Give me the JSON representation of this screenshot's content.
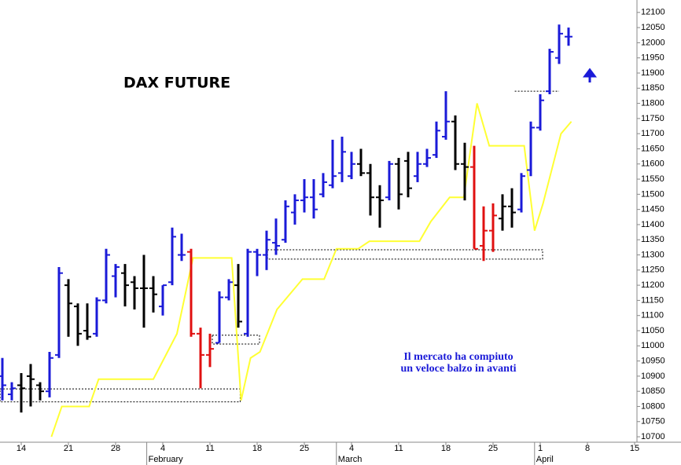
{
  "chart_data": {
    "type": "ohlc",
    "title": "DAX FUTURE",
    "annotations": [
      "Il mercato ha compiuto",
      "un veloce balzo in avanti"
    ],
    "x": [
      -2,
      -1,
      0,
      1,
      2,
      3,
      4,
      5,
      6,
      7,
      8,
      9,
      10,
      11,
      12,
      13,
      14,
      15,
      16,
      17,
      18,
      19,
      20,
      21,
      22,
      23,
      24,
      25,
      26,
      27,
      28,
      29,
      30,
      31,
      32,
      33,
      34,
      35,
      36,
      37,
      38,
      39,
      40,
      41,
      42,
      43,
      44,
      45,
      46,
      47,
      48,
      49,
      50,
      51,
      52,
      53,
      54,
      55,
      56,
      57,
      58
    ],
    "open": [
      10900,
      10840,
      10870,
      10900,
      10870,
      10850,
      10970,
      11200,
      11130,
      11050,
      11040,
      11150,
      11230,
      11240,
      11210,
      11190,
      11190,
      11130,
      11210,
      11300,
      11310,
      11040,
      10970,
      11010,
      11160,
      11200,
      11040,
      11310,
      11300,
      11340,
      11350,
      11440,
      11480,
      11490,
      11500,
      11530,
      11570,
      11560,
      11600,
      11570,
      11490,
      11490,
      11600,
      11610,
      11560,
      11600,
      11630,
      11690,
      11740,
      11600,
      11590,
      11330,
      11380,
      11420,
      11460,
      11450,
      11580,
      11720,
      11840,
      11950,
      12020
    ],
    "high": [
      10960,
      10880,
      10910,
      10940,
      10880,
      10980,
      11260,
      11220,
      11140,
      11140,
      11160,
      11320,
      11270,
      11270,
      11230,
      11300,
      11230,
      11200,
      11390,
      11370,
      11320,
      11060,
      11040,
      11180,
      11220,
      11270,
      11320,
      11320,
      11380,
      11420,
      11480,
      11500,
      11550,
      11550,
      11570,
      11680,
      11690,
      11640,
      11650,
      11600,
      11530,
      11610,
      11620,
      11640,
      11640,
      11650,
      11740,
      11840,
      11760,
      11670,
      11660,
      11460,
      11470,
      11500,
      11520,
      11570,
      11740,
      11830,
      11980,
      12060,
      12050
    ],
    "low": [
      10820,
      10820,
      10780,
      10800,
      10820,
      10830,
      10960,
      11030,
      11000,
      11020,
      11030,
      11140,
      11160,
      11130,
      11120,
      11060,
      11110,
      11100,
      11200,
      11280,
      11030,
      10860,
      10930,
      11010,
      11150,
      11060,
      11030,
      11230,
      11250,
      11300,
      11340,
      11400,
      11440,
      11420,
      11490,
      11520,
      11540,
      11550,
      11560,
      11430,
      11390,
      11480,
      11450,
      11490,
      11540,
      11590,
      11620,
      11680,
      11580,
      11480,
      11320,
      11280,
      11310,
      11380,
      11390,
      11440,
      11560,
      11710,
      11830,
      11930,
      11990
    ],
    "close": [
      10870,
      10860,
      10860,
      10890,
      10850,
      10960,
      11240,
      11140,
      11040,
      11030,
      11150,
      11300,
      11260,
      11200,
      11190,
      11190,
      11170,
      11200,
      11360,
      11300,
      11040,
      10970,
      10990,
      11160,
      11210,
      11080,
      11310,
      11300,
      11350,
      11330,
      11460,
      11480,
      11490,
      11450,
      11540,
      11560,
      11640,
      11600,
      11570,
      11490,
      11480,
      11600,
      11500,
      11520,
      11600,
      11620,
      11710,
      11740,
      11600,
      11590,
      11320,
      11380,
      11430,
      11460,
      11440,
      11560,
      11720,
      11810,
      11970,
      12030,
      12020
    ],
    "bar_colors": [
      "#1a1ad8",
      "#1a1ad8",
      "#000000",
      "#000000",
      "#000000",
      "#1a1ad8",
      "#1a1ad8",
      "#000000",
      "#000000",
      "#000000",
      "#1a1ad8",
      "#1a1ad8",
      "#1a1ad8",
      "#000000",
      "#000000",
      "#000000",
      "#000000",
      "#1a1ad8",
      "#1a1ad8",
      "#1a1ad8",
      "#e01010",
      "#e01010",
      "#e01010",
      "#1a1ad8",
      "#1a1ad8",
      "#000000",
      "#1a1ad8",
      "#1a1ad8",
      "#1a1ad8",
      "#1a1ad8",
      "#1a1ad8",
      "#1a1ad8",
      "#1a1ad8",
      "#1a1ad8",
      "#1a1ad8",
      "#1a1ad8",
      "#1a1ad8",
      "#1a1ad8",
      "#000000",
      "#000000",
      "#000000",
      "#1a1ad8",
      "#000000",
      "#000000",
      "#1a1ad8",
      "#1a1ad8",
      "#1a1ad8",
      "#1a1ad8",
      "#000000",
      "#000000",
      "#e01010",
      "#e01010",
      "#e01010",
      "#000000",
      "#000000",
      "#1a1ad8",
      "#1a1ad8",
      "#1a1ad8",
      "#1a1ad8",
      "#1a1ad8",
      "#1a1ad8"
    ],
    "trend": {
      "color": "#ffff33",
      "x": [
        3.2,
        4.3,
        7.2,
        8.2,
        14,
        16.5,
        18.2,
        22.3,
        23.3,
        24.3,
        25.3,
        27.1,
        29.8,
        32.1,
        33.4,
        35.7,
        36.9,
        42.2,
        43.4,
        45.4,
        46.9,
        48.3,
        49.6,
        53.3,
        54.4,
        55.3,
        57.2,
        58.3
      ],
      "values": [
        10700,
        10800,
        10800,
        10890,
        10890,
        11040,
        11290,
        11290,
        10820,
        10960,
        10980,
        11120,
        11220,
        11220,
        11320,
        11320,
        11345,
        11345,
        11410,
        11490,
        11490,
        11800,
        11660,
        11660,
        11380,
        11470,
        11700,
        11740
      ]
    },
    "zones": [
      {
        "x": [
          -2.25,
          23.2
        ],
        "y": [
          10815,
          10858
        ]
      },
      {
        "x": [
          20.25,
          25.25
        ],
        "y": [
          11006,
          11035
        ]
      },
      {
        "x": [
          26.1,
          55.25
        ],
        "y": [
          11286,
          11317
        ]
      }
    ],
    "levels": [
      {
        "x": [
          52.3,
          57
        ],
        "y": 11840
      }
    ],
    "xlim": [
      -2.25,
      65.25
    ],
    "ylim": [
      10682,
      12141
    ],
    "xticks": [
      {
        "value": 0,
        "label": "14"
      },
      {
        "value": 5,
        "label": "21"
      },
      {
        "value": 10,
        "label": "28"
      },
      {
        "value": 15,
        "label": "4"
      },
      {
        "value": 20,
        "label": "11"
      },
      {
        "value": 25,
        "label": "18"
      },
      {
        "value": 30,
        "label": "25"
      },
      {
        "value": 35,
        "label": "4"
      },
      {
        "value": 40,
        "label": "11"
      },
      {
        "value": 45,
        "label": "18"
      },
      {
        "value": 50,
        "label": "25"
      },
      {
        "value": 55,
        "label": "1"
      },
      {
        "value": 60,
        "label": "8"
      },
      {
        "value": 65,
        "label": "15"
      }
    ],
    "month_ticks": [
      {
        "value": 13.3,
        "label": "February"
      },
      {
        "value": 33.4,
        "label": "March"
      },
      {
        "value": 54.4,
        "label": "April"
      }
    ],
    "yticks": [
      10700,
      10750,
      10800,
      10850,
      10900,
      10950,
      11000,
      11050,
      11100,
      11150,
      11200,
      11250,
      11300,
      11350,
      11400,
      11450,
      11500,
      11550,
      11600,
      11650,
      11700,
      11750,
      11800,
      11850,
      11900,
      11950,
      12000,
      12050,
      12100
    ]
  }
}
